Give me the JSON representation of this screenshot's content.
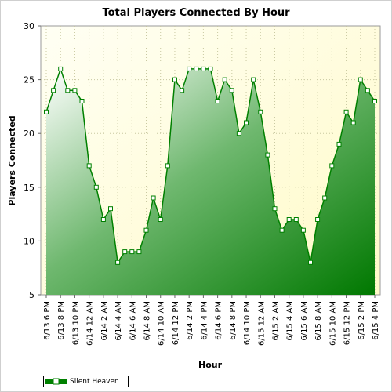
{
  "chart_data": {
    "type": "area",
    "title": "Total Players Connected By Hour",
    "xlabel": "Hour",
    "ylabel": "Players Connected",
    "ylim": [
      5,
      30
    ],
    "yticks": [
      5,
      10,
      15,
      20,
      25,
      30
    ],
    "grid": true,
    "legend_position": "bottom-left",
    "tick_labels": [
      "6/13 6 PM",
      "6/13 8 PM",
      "6/13 10 PM",
      "6/14 12 AM",
      "6/14 2 AM",
      "6/14 4 AM",
      "6/14 6 AM",
      "6/14 8 AM",
      "6/14 10 AM",
      "6/14 12 PM",
      "6/14 2 PM",
      "6/14 4 PM",
      "6/14 6 PM",
      "6/14 8 PM",
      "6/14 10 PM",
      "6/15 12 AM",
      "6/15 2 AM",
      "6/15 4 AM",
      "6/15 6 AM",
      "6/15 8 AM",
      "6/15 10 AM",
      "6/15 12 PM",
      "6/15 2 PM",
      "6/15 4 PM"
    ],
    "series": [
      {
        "name": "Silent Heaven",
        "color": "#008000",
        "values": [
          22,
          24,
          26,
          24,
          24,
          23,
          17,
          15,
          12,
          13,
          8,
          9,
          9,
          9,
          11,
          14,
          12,
          17,
          25,
          24,
          26,
          26,
          26,
          26,
          23,
          25,
          24,
          20,
          21,
          25,
          22,
          18,
          13,
          11,
          12,
          12,
          11,
          8,
          12,
          14,
          17,
          19,
          22,
          21,
          25,
          24,
          23
        ]
      }
    ]
  },
  "colors": {
    "plot_background": "#ffffe0",
    "line": "#008000",
    "grid": "#cccc99"
  }
}
